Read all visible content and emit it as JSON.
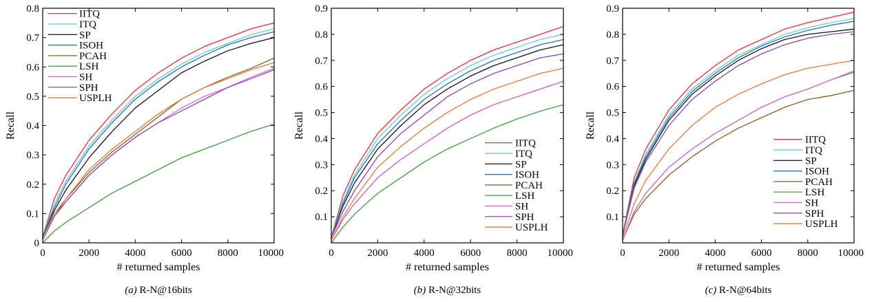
{
  "chart_data": [
    {
      "type": "line",
      "caption_prefix": "(a)",
      "caption_text": "R-N@16bits",
      "xlabel": "# returned samples",
      "ylabel": "Recall",
      "xlim": [
        0,
        10000
      ],
      "ylim": [
        0,
        0.8
      ],
      "xticks": [
        0,
        2000,
        4000,
        6000,
        8000,
        10000
      ],
      "xtick_labels": [
        "0",
        "2000",
        "4000",
        "6000",
        "8000",
        "10000"
      ],
      "yticks": [
        0,
        0.1,
        0.2,
        0.3,
        0.4,
        0.5,
        0.6,
        0.7,
        0.8
      ],
      "ytick_labels": [
        "0",
        "0.1",
        "0.2",
        "0.3",
        "0.4",
        "0.5",
        "0.6",
        "0.7",
        "0.8"
      ],
      "legend_position": "top-left",
      "x": [
        0,
        500,
        1000,
        2000,
        3000,
        4000,
        5000,
        6000,
        7000,
        8000,
        9000,
        10000
      ],
      "series": [
        {
          "name": "IITQ",
          "color": "#e8303a",
          "values": [
            0.02,
            0.15,
            0.23,
            0.35,
            0.44,
            0.52,
            0.58,
            0.63,
            0.67,
            0.7,
            0.73,
            0.75
          ]
        },
        {
          "name": "ITQ",
          "color": "#5fcfd6",
          "values": [
            0.02,
            0.13,
            0.21,
            0.33,
            0.42,
            0.5,
            0.56,
            0.61,
            0.65,
            0.68,
            0.71,
            0.73
          ]
        },
        {
          "name": "SP",
          "color": "#111111",
          "values": [
            0.02,
            0.11,
            0.18,
            0.29,
            0.38,
            0.46,
            0.52,
            0.58,
            0.62,
            0.655,
            0.68,
            0.7
          ]
        },
        {
          "name": "ISOH",
          "color": "#2a6db5",
          "values": [
            0.02,
            0.12,
            0.2,
            0.32,
            0.41,
            0.49,
            0.55,
            0.6,
            0.64,
            0.675,
            0.7,
            0.72
          ]
        },
        {
          "name": "PCAH",
          "color": "#8a5a2b",
          "values": [
            0.01,
            0.09,
            0.15,
            0.24,
            0.31,
            0.37,
            0.43,
            0.49,
            0.53,
            0.565,
            0.595,
            0.63
          ]
        },
        {
          "name": "LSH",
          "color": "#3f9a3f",
          "values": [
            0.0,
            0.04,
            0.07,
            0.12,
            0.17,
            0.21,
            0.25,
            0.29,
            0.32,
            0.35,
            0.38,
            0.405
          ]
        },
        {
          "name": "SH",
          "color": "#d36bd6",
          "values": [
            0.01,
            0.09,
            0.14,
            0.23,
            0.3,
            0.36,
            0.41,
            0.46,
            0.5,
            0.53,
            0.565,
            0.595
          ]
        },
        {
          "name": "SPH",
          "color": "#8e44ad",
          "values": [
            0.01,
            0.09,
            0.14,
            0.23,
            0.3,
            0.36,
            0.41,
            0.45,
            0.49,
            0.53,
            0.56,
            0.59
          ]
        },
        {
          "name": "USPLH",
          "color": "#e07b39",
          "values": [
            0.01,
            0.1,
            0.15,
            0.25,
            0.32,
            0.38,
            0.44,
            0.49,
            0.53,
            0.56,
            0.59,
            0.615
          ]
        }
      ]
    },
    {
      "type": "line",
      "caption_prefix": "(b)",
      "caption_text": "R-N@32bits",
      "xlabel": "# returned samples",
      "ylabel": "Recall",
      "xlim": [
        0,
        10000
      ],
      "ylim": [
        0,
        0.9
      ],
      "xticks": [
        0,
        2000,
        4000,
        6000,
        8000,
        10000
      ],
      "xtick_labels": [
        "0",
        "2000",
        "4000",
        "6000",
        "8000",
        "10000"
      ],
      "yticks": [
        0.1,
        0.2,
        0.3,
        0.4,
        0.5,
        0.6,
        0.7,
        0.8,
        0.9
      ],
      "ytick_labels": [
        "0.1",
        "0.2",
        "0.3",
        "0.4",
        "0.5",
        "0.6",
        "0.7",
        "0.8",
        "0.9"
      ],
      "legend_position": "bottom-right",
      "x": [
        0,
        500,
        1000,
        2000,
        3000,
        4000,
        5000,
        6000,
        7000,
        8000,
        9000,
        10000
      ],
      "series": [
        {
          "name": "IITQ",
          "color": "#e8303a",
          "values": [
            0.02,
            0.18,
            0.28,
            0.42,
            0.51,
            0.59,
            0.65,
            0.7,
            0.74,
            0.77,
            0.8,
            0.83
          ]
        },
        {
          "name": "ITQ",
          "color": "#5fcfd6",
          "values": [
            0.02,
            0.16,
            0.26,
            0.4,
            0.49,
            0.57,
            0.63,
            0.68,
            0.72,
            0.75,
            0.78,
            0.8
          ]
        },
        {
          "name": "SP",
          "color": "#111111",
          "values": [
            0.02,
            0.14,
            0.23,
            0.36,
            0.45,
            0.53,
            0.59,
            0.64,
            0.68,
            0.71,
            0.74,
            0.76
          ]
        },
        {
          "name": "ISOH",
          "color": "#2a6db5",
          "values": [
            0.02,
            0.15,
            0.25,
            0.38,
            0.47,
            0.55,
            0.61,
            0.66,
            0.7,
            0.73,
            0.76,
            0.78
          ]
        },
        {
          "name": "PCAH",
          "color": "#8a5a2b",
          "values": [
            0.01,
            0.09,
            0.15,
            0.25,
            0.32,
            0.38,
            0.44,
            0.49,
            0.53,
            0.56,
            0.59,
            0.62
          ]
        },
        {
          "name": "LSH",
          "color": "#3f9a3f",
          "values": [
            0.0,
            0.06,
            0.11,
            0.19,
            0.25,
            0.31,
            0.36,
            0.4,
            0.44,
            0.475,
            0.505,
            0.53
          ]
        },
        {
          "name": "SH",
          "color": "#d36bd6",
          "values": [
            0.01,
            0.09,
            0.15,
            0.25,
            0.32,
            0.38,
            0.44,
            0.49,
            0.53,
            0.56,
            0.59,
            0.62
          ]
        },
        {
          "name": "SPH",
          "color": "#8e44ad",
          "values": [
            0.02,
            0.12,
            0.2,
            0.33,
            0.42,
            0.49,
            0.56,
            0.61,
            0.65,
            0.68,
            0.71,
            0.725
          ]
        },
        {
          "name": "USPLH",
          "color": "#e07b39",
          "values": [
            0.01,
            0.1,
            0.17,
            0.29,
            0.37,
            0.44,
            0.5,
            0.55,
            0.59,
            0.62,
            0.65,
            0.67
          ]
        }
      ]
    },
    {
      "type": "line",
      "caption_prefix": "(c)",
      "caption_text": "R-N@64bits",
      "xlabel": "# returned samples",
      "ylabel": "Recall",
      "xlim": [
        0,
        10000
      ],
      "ylim": [
        0,
        0.9
      ],
      "xticks": [
        0,
        2000,
        4000,
        6000,
        8000,
        10000
      ],
      "xtick_labels": [
        "0",
        "2000",
        "4000",
        "6000",
        "8000",
        "10000"
      ],
      "yticks": [
        0.1,
        0.2,
        0.3,
        0.4,
        0.5,
        0.6,
        0.7,
        0.8,
        0.9
      ],
      "ytick_labels": [
        "0.1",
        "0.2",
        "0.3",
        "0.4",
        "0.5",
        "0.6",
        "0.7",
        "0.8",
        "0.9"
      ],
      "legend_position": "bottom-right",
      "x": [
        0,
        500,
        1000,
        2000,
        3000,
        4000,
        5000,
        6000,
        7000,
        8000,
        9000,
        10000
      ],
      "series": [
        {
          "name": "IITQ",
          "color": "#e8303a",
          "values": [
            0.03,
            0.25,
            0.36,
            0.51,
            0.61,
            0.68,
            0.74,
            0.78,
            0.82,
            0.845,
            0.865,
            0.885
          ]
        },
        {
          "name": "ITQ",
          "color": "#5fcfd6",
          "values": [
            0.03,
            0.23,
            0.34,
            0.49,
            0.59,
            0.66,
            0.72,
            0.76,
            0.8,
            0.825,
            0.845,
            0.86
          ]
        },
        {
          "name": "SP",
          "color": "#111111",
          "values": [
            0.03,
            0.22,
            0.32,
            0.47,
            0.57,
            0.64,
            0.7,
            0.745,
            0.78,
            0.8,
            0.81,
            0.82
          ]
        },
        {
          "name": "ISOH",
          "color": "#2a6db5",
          "values": [
            0.03,
            0.23,
            0.33,
            0.48,
            0.58,
            0.65,
            0.71,
            0.755,
            0.79,
            0.815,
            0.835,
            0.85
          ]
        },
        {
          "name": "PCAH",
          "color": "#8a5a2b",
          "values": [
            0.01,
            0.11,
            0.17,
            0.26,
            0.33,
            0.39,
            0.44,
            0.48,
            0.52,
            0.55,
            0.565,
            0.585
          ]
        },
        {
          "name": "LSH",
          "color": "#3f9a3f",
          "values": [
            0.01,
            0.12,
            0.19,
            0.29,
            0.36,
            0.42,
            0.47,
            0.52,
            0.56,
            0.59,
            0.625,
            0.655
          ]
        },
        {
          "name": "SH",
          "color": "#d36bd6",
          "values": [
            0.01,
            0.12,
            0.19,
            0.29,
            0.36,
            0.42,
            0.47,
            0.52,
            0.56,
            0.59,
            0.625,
            0.66
          ]
        },
        {
          "name": "SPH",
          "color": "#8e44ad",
          "values": [
            0.03,
            0.21,
            0.31,
            0.45,
            0.55,
            0.62,
            0.68,
            0.725,
            0.76,
            0.785,
            0.8,
            0.81
          ]
        },
        {
          "name": "USPLH",
          "color": "#e07b39",
          "values": [
            0.02,
            0.15,
            0.24,
            0.36,
            0.45,
            0.52,
            0.57,
            0.61,
            0.645,
            0.67,
            0.685,
            0.7
          ]
        }
      ]
    }
  ]
}
